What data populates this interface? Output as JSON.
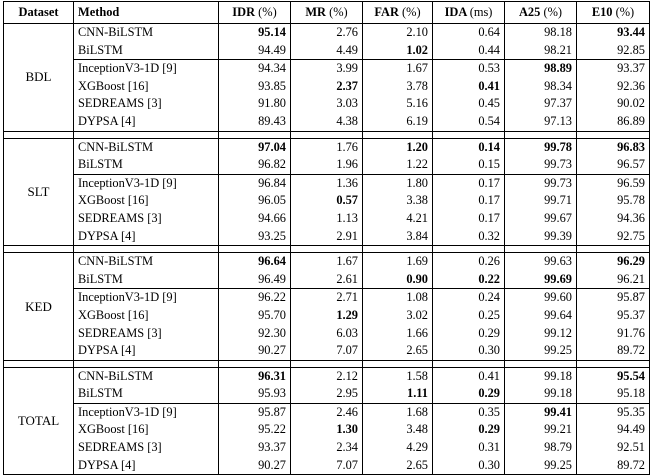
{
  "columns": {
    "dataset": "Dataset",
    "method": "Method",
    "idr": "IDR",
    "idr_unit": "(%)",
    "mr": "MR",
    "mr_unit": "(%)",
    "far": "FAR",
    "far_unit": "(%)",
    "ida": "IDA",
    "ida_unit": "(ms)",
    "a25": "A25",
    "a25_unit": "(%)",
    "e10": "E10",
    "e10_unit": "(%)"
  },
  "groups": [
    {
      "dataset": "BDL",
      "rows": [
        {
          "method": "CNN-BiLSTM",
          "idr": "95.14",
          "mr": "2.76",
          "far": "2.10",
          "ida": "0.64",
          "a25": "98.18",
          "e10": "93.44",
          "bold": [
            "idr",
            "e10"
          ]
        },
        {
          "method": "BiLSTM",
          "idr": "94.49",
          "mr": "4.49",
          "far": "1.02",
          "ida": "0.44",
          "a25": "98.21",
          "e10": "92.85",
          "bold": [
            "far"
          ]
        },
        {
          "method": "InceptionV3-1D [9]",
          "idr": "94.34",
          "mr": "3.99",
          "far": "1.67",
          "ida": "0.53",
          "a25": "98.89",
          "e10": "93.37",
          "bold": [
            "a25"
          ]
        },
        {
          "method": "XGBoost [16]",
          "idr": "93.85",
          "mr": "2.37",
          "far": "3.78",
          "ida": "0.41",
          "a25": "98.34",
          "e10": "92.36",
          "bold": [
            "mr",
            "ida"
          ]
        },
        {
          "method": "SEDREAMS [3]",
          "idr": "91.80",
          "mr": "3.03",
          "far": "5.16",
          "ida": "0.45",
          "a25": "97.37",
          "e10": "90.02",
          "bold": []
        },
        {
          "method": "DYPSA [4]",
          "idr": "89.43",
          "mr": "4.38",
          "far": "6.19",
          "ida": "0.54",
          "a25": "97.13",
          "e10": "86.89",
          "bold": []
        }
      ]
    },
    {
      "dataset": "SLT",
      "rows": [
        {
          "method": "CNN-BiLSTM",
          "idr": "97.04",
          "mr": "1.76",
          "far": "1.20",
          "ida": "0.14",
          "a25": "99.78",
          "e10": "96.83",
          "bold": [
            "idr",
            "far",
            "ida",
            "a25",
            "e10"
          ]
        },
        {
          "method": "BiLSTM",
          "idr": "96.82",
          "mr": "1.96",
          "far": "1.22",
          "ida": "0.15",
          "a25": "99.73",
          "e10": "96.57",
          "bold": []
        },
        {
          "method": "InceptionV3-1D [9]",
          "idr": "96.84",
          "mr": "1.36",
          "far": "1.80",
          "ida": "0.17",
          "a25": "99.73",
          "e10": "96.59",
          "bold": []
        },
        {
          "method": "XGBoost [16]",
          "idr": "96.05",
          "mr": "0.57",
          "far": "3.38",
          "ida": "0.17",
          "a25": "99.71",
          "e10": "95.78",
          "bold": [
            "mr"
          ]
        },
        {
          "method": "SEDREAMS [3]",
          "idr": "94.66",
          "mr": "1.13",
          "far": "4.21",
          "ida": "0.17",
          "a25": "99.67",
          "e10": "94.36",
          "bold": []
        },
        {
          "method": "DYPSA [4]",
          "idr": "93.25",
          "mr": "2.91",
          "far": "3.84",
          "ida": "0.32",
          "a25": "99.39",
          "e10": "92.75",
          "bold": []
        }
      ]
    },
    {
      "dataset": "KED",
      "rows": [
        {
          "method": "CNN-BiLSTM",
          "idr": "96.64",
          "mr": "1.67",
          "far": "1.69",
          "ida": "0.26",
          "a25": "99.63",
          "e10": "96.29",
          "bold": [
            "idr",
            "e10"
          ]
        },
        {
          "method": "BiLSTM",
          "idr": "96.49",
          "mr": "2.61",
          "far": "0.90",
          "ida": "0.22",
          "a25": "99.69",
          "e10": "96.21",
          "bold": [
            "far",
            "ida",
            "a25"
          ]
        },
        {
          "method": "InceptionV3-1D [9]",
          "idr": "96.22",
          "mr": "2.71",
          "far": "1.08",
          "ida": "0.24",
          "a25": "99.60",
          "e10": "95.87",
          "bold": []
        },
        {
          "method": "XGBoost [16]",
          "idr": "95.70",
          "mr": "1.29",
          "far": "3.02",
          "ida": "0.25",
          "a25": "99.64",
          "e10": "95.37",
          "bold": [
            "mr"
          ]
        },
        {
          "method": "SEDREAMS [3]",
          "idr": "92.30",
          "mr": "6.03",
          "far": "1.66",
          "ida": "0.29",
          "a25": "99.12",
          "e10": "91.76",
          "bold": []
        },
        {
          "method": "DYPSA [4]",
          "idr": "90.27",
          "mr": "7.07",
          "far": "2.65",
          "ida": "0.30",
          "a25": "99.25",
          "e10": "89.72",
          "bold": []
        }
      ]
    },
    {
      "dataset": "TOTAL",
      "rows": [
        {
          "method": "CNN-BiLSTM",
          "idr": "96.31",
          "mr": "2.12",
          "far": "1.58",
          "ida": "0.41",
          "a25": "99.18",
          "e10": "95.54",
          "bold": [
            "idr",
            "e10"
          ]
        },
        {
          "method": "BiLSTM",
          "idr": "95.93",
          "mr": "2.95",
          "far": "1.11",
          "ida": "0.29",
          "a25": "99.18",
          "e10": "95.18",
          "bold": [
            "far",
            "ida"
          ]
        },
        {
          "method": "InceptionV3-1D [9]",
          "idr": "95.87",
          "mr": "2.46",
          "far": "1.68",
          "ida": "0.35",
          "a25": "99.41",
          "e10": "95.35",
          "bold": [
            "a25"
          ]
        },
        {
          "method": "XGBoost [16]",
          "idr": "95.22",
          "mr": "1.30",
          "far": "3.48",
          "ida": "0.29",
          "a25": "99.21",
          "e10": "94.49",
          "bold": [
            "mr",
            "ida"
          ]
        },
        {
          "method": "SEDREAMS [3]",
          "idr": "93.37",
          "mr": "2.34",
          "far": "4.29",
          "ida": "0.31",
          "a25": "98.79",
          "e10": "92.51",
          "bold": []
        },
        {
          "method": "DYPSA [4]",
          "idr": "90.27",
          "mr": "7.07",
          "far": "2.65",
          "ida": "0.30",
          "a25": "99.25",
          "e10": "89.72",
          "bold": []
        }
      ]
    }
  ]
}
